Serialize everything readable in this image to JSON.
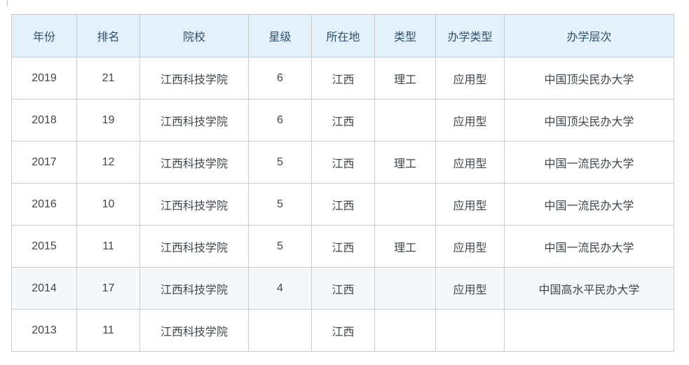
{
  "table": {
    "columns": [
      {
        "key": "year",
        "label": "年份"
      },
      {
        "key": "rank",
        "label": "排名"
      },
      {
        "key": "school",
        "label": "院校"
      },
      {
        "key": "stars",
        "label": "星级"
      },
      {
        "key": "location",
        "label": "所在地"
      },
      {
        "key": "type",
        "label": "类型"
      },
      {
        "key": "edu-type",
        "label": "办学类型"
      },
      {
        "key": "edu-level",
        "label": "办学层次"
      }
    ],
    "rows": [
      [
        "2019",
        "21",
        "江西科技学院",
        "6",
        "江西",
        "理工",
        "应用型",
        "中国顶尖民办大学"
      ],
      [
        "2018",
        "19",
        "江西科技学院",
        "6",
        "江西",
        "",
        "应用型",
        "中国顶尖民办大学"
      ],
      [
        "2017",
        "12",
        "江西科技学院",
        "5",
        "江西",
        "理工",
        "应用型",
        "中国一流民办大学"
      ],
      [
        "2016",
        "10",
        "江西科技学院",
        "5",
        "江西",
        "",
        "应用型",
        "中国一流民办大学"
      ],
      [
        "2015",
        "11",
        "江西科技学院",
        "5",
        "江西",
        "理工",
        "应用型",
        "中国一流民办大学"
      ],
      [
        "2014",
        "17",
        "江西科技学院",
        "4",
        "江西",
        "",
        "应用型",
        "中国高水平民办大学"
      ],
      [
        "2013",
        "11",
        "江西科技学院",
        "",
        "江西",
        "",
        "",
        ""
      ]
    ],
    "highlighted_row_index": 5
  },
  "colors": {
    "header_bg": "#e3f1fb",
    "header_text": "#31506a",
    "body_text": "#3f474d",
    "border": "#cbcbcb",
    "highlight_row_bg": "#f5f8fb",
    "page_bg": "#ffffff"
  }
}
